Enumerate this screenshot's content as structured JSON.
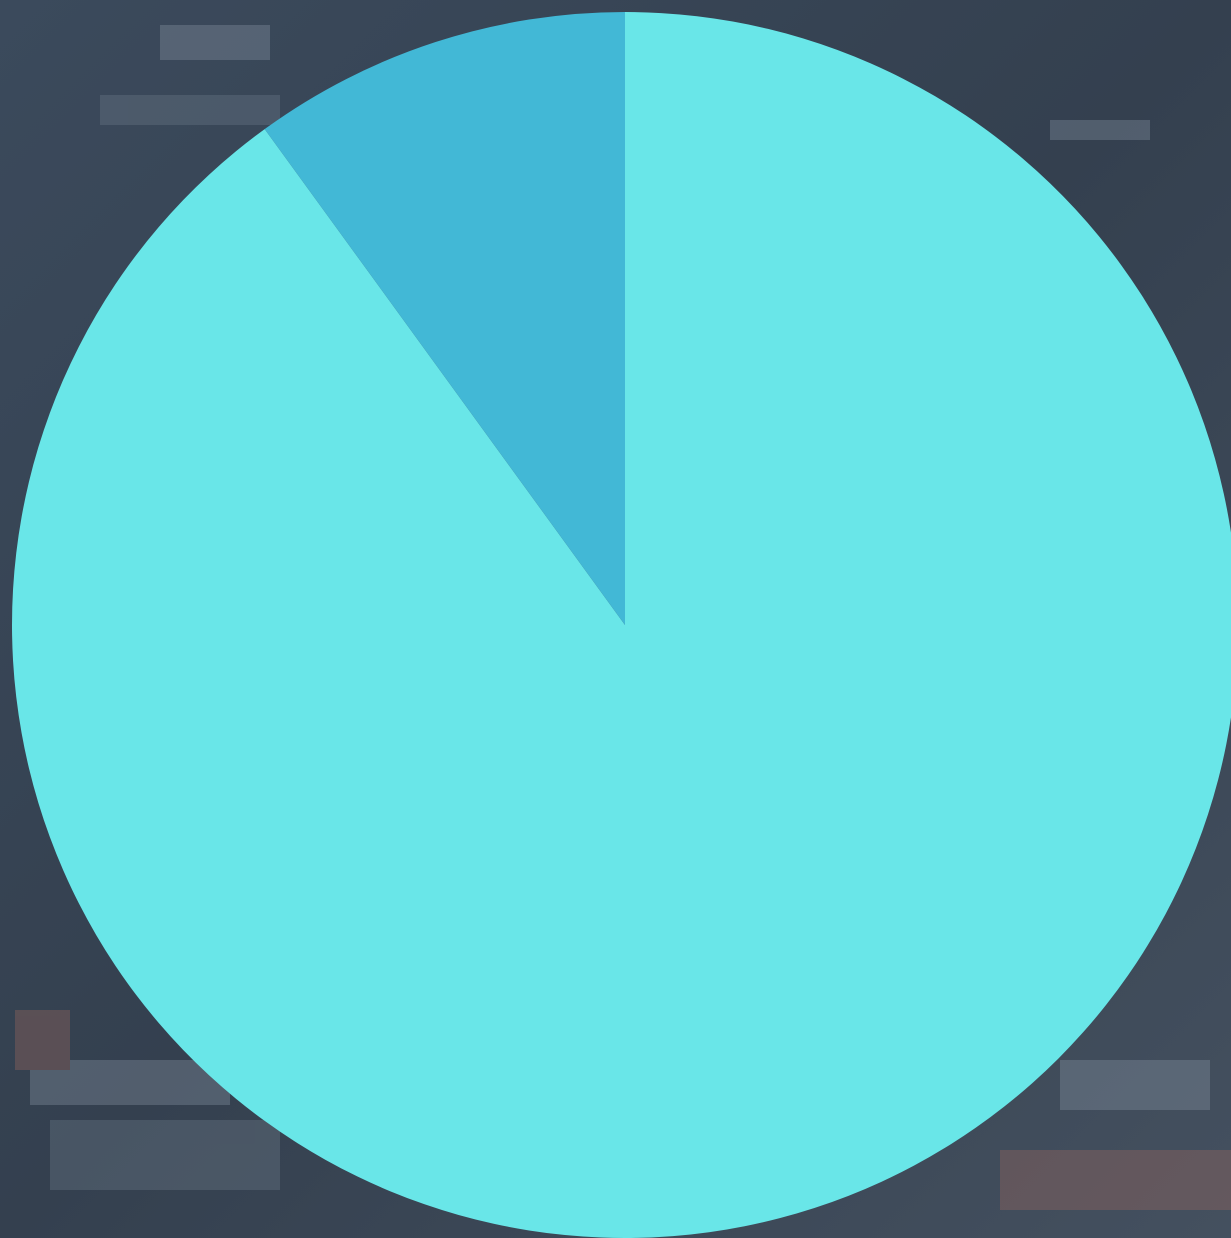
{
  "chart_data": {
    "type": "pie",
    "values": [
      90,
      10
    ],
    "colors": [
      "#69e6e8",
      "#42b8d6"
    ]
  }
}
